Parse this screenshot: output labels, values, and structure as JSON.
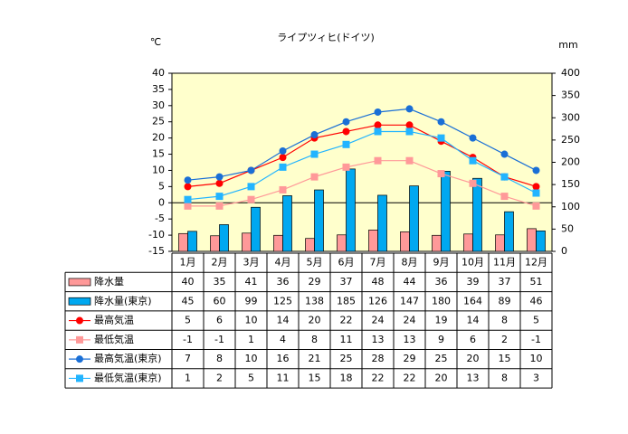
{
  "chart_data": {
    "type": "combo",
    "title": "ライプツィヒ(ドイツ)",
    "y_label": "℃",
    "y2_label": "mm",
    "categories": [
      "1月",
      "2月",
      "3月",
      "4月",
      "5月",
      "6月",
      "7月",
      "8月",
      "9月",
      "10月",
      "11月",
      "12月"
    ],
    "ylim": [
      -15,
      40
    ],
    "yticks": [
      -15,
      -10,
      -5,
      0,
      5,
      10,
      15,
      20,
      25,
      30,
      35,
      40
    ],
    "y2lim": [
      0,
      400
    ],
    "y2ticks": [
      0,
      50,
      100,
      150,
      200,
      250,
      300,
      350,
      400
    ],
    "background": "#ffffcc",
    "series": [
      {
        "name": "降水量",
        "type": "bar",
        "axis": "y2",
        "color": "#ff9999",
        "values": [
          40,
          35,
          41,
          36,
          29,
          37,
          48,
          44,
          36,
          39,
          37,
          51
        ]
      },
      {
        "name": "降水量(東京)",
        "type": "bar",
        "axis": "y2",
        "color": "#00a8f0",
        "values": [
          45,
          60,
          99,
          125,
          138,
          185,
          126,
          147,
          180,
          164,
          89,
          46
        ]
      },
      {
        "name": "最高気温",
        "type": "line",
        "marker": "circle",
        "color": "#ff0000",
        "values": [
          5,
          6,
          10,
          14,
          20,
          22,
          24,
          24,
          19,
          14,
          8,
          5
        ]
      },
      {
        "name": "最低気温",
        "type": "line",
        "marker": "square",
        "color": "#ff9999",
        "values": [
          -1,
          -1,
          1,
          4,
          8,
          11,
          13,
          13,
          9,
          6,
          2,
          -1
        ]
      },
      {
        "name": "最高気温(東京)",
        "type": "line",
        "marker": "circle",
        "color": "#1a6fd6",
        "values": [
          7,
          8,
          10,
          16,
          21,
          25,
          28,
          29,
          25,
          20,
          15,
          10
        ]
      },
      {
        "name": "最低気温(東京)",
        "type": "line",
        "marker": "square",
        "color": "#22b4ff",
        "values": [
          1,
          2,
          5,
          11,
          15,
          18,
          22,
          22,
          20,
          13,
          8,
          3
        ]
      }
    ]
  }
}
